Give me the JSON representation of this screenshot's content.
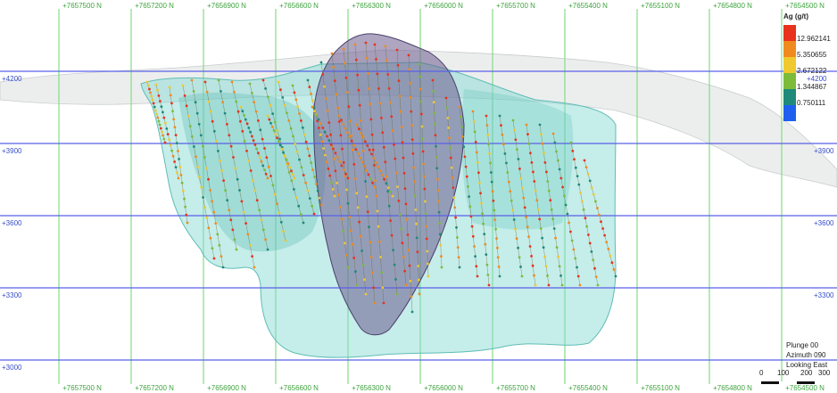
{
  "viewer": {
    "north_labels": [
      "+7657500 N",
      "+7657200 N",
      "+7656900 N",
      "+7656600 N",
      "+7656300 N",
      "+7656000 N",
      "+7655700 N",
      "+7655400 N",
      "+7655100 N",
      "+7654800 N",
      "+7654500 N"
    ],
    "north_labels_bottom": [
      "+7657500 N",
      "+7657200 N",
      "+7656900 N",
      "+7656600 N",
      "+7656300 N",
      "+7656000 N",
      "+7655700 N",
      "+7655400 N",
      "+7655100 N",
      "+7654800 N",
      "+7654500 N"
    ],
    "elevation_labels": [
      "+4200",
      "+3900",
      "+3600",
      "+3300",
      "+3000"
    ],
    "elevation_labels_right": [
      "+4200",
      "+3900",
      "+3600",
      "+3300"
    ],
    "legend": {
      "title": "Ag (g/t)",
      "entries": [
        {
          "value": "12.962141",
          "color": "#e8321e"
        },
        {
          "value": "5.350655",
          "color": "#f08a1e"
        },
        {
          "value": "2.672122",
          "color": "#f0c830"
        },
        {
          "value": "1.344867",
          "color": "#7dbb3a"
        },
        {
          "value": "0.750111",
          "color": "#1f8a7a"
        },
        {
          "value": "",
          "color": "#1f5ff0"
        }
      ]
    },
    "view_info": {
      "plunge": "Plunge 00",
      "azimuth": "Azimuth 090",
      "looking": "Looking East"
    },
    "scale": {
      "ticks": [
        "0",
        "100",
        "200",
        "300"
      ]
    },
    "colors": {
      "grid_north": "#7fd97f",
      "grid_elevation": "#5a5fe0",
      "ore_shell": "#7fd6cf",
      "pit_shell": "#6e5a8c",
      "surface": "#d9dcde"
    }
  }
}
